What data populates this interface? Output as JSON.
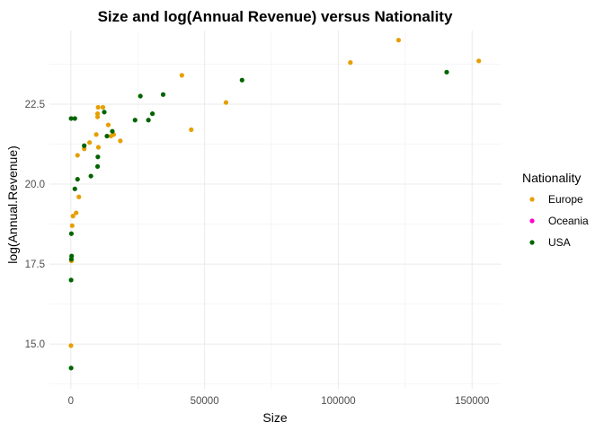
{
  "chart_data": {
    "type": "scatter",
    "title": "Size and log(Annual Revenue) versus Nationality",
    "xlabel": "Size",
    "ylabel": "log(Annual.Revenue)",
    "xlim": [
      -8000,
      161000
    ],
    "ylim": [
      13.6,
      24.8
    ],
    "x_ticks": [
      0,
      50000,
      100000,
      150000
    ],
    "x_tick_labels": [
      "0",
      "50000",
      "100000",
      "150000"
    ],
    "y_ticks": [
      15.0,
      17.5,
      20.0,
      22.5
    ],
    "y_tick_labels": [
      "15.0",
      "17.5",
      "20.0",
      "22.5"
    ],
    "grid": true,
    "legend": {
      "title": "Nationality",
      "position": "right",
      "entries": [
        {
          "name": "Europe",
          "color": "#E69F00"
        },
        {
          "name": "Oceania",
          "color": "#FF00CC"
        },
        {
          "name": "USA",
          "color": "#006400"
        }
      ]
    },
    "series": [
      {
        "name": "Europe",
        "color": "#E69F00",
        "points": [
          [
            50,
            14.95
          ],
          [
            200,
            17.6
          ],
          [
            500,
            18.7
          ],
          [
            800,
            19.0
          ],
          [
            2000,
            19.1
          ],
          [
            2500,
            20.9
          ],
          [
            3000,
            19.6
          ],
          [
            5000,
            21.1
          ],
          [
            7000,
            21.3
          ],
          [
            9500,
            21.55
          ],
          [
            10000,
            22.1
          ],
          [
            10200,
            22.4
          ],
          [
            10000,
            22.2
          ],
          [
            10300,
            21.15
          ],
          [
            12000,
            22.4
          ],
          [
            14000,
            21.85
          ],
          [
            15000,
            21.5
          ],
          [
            16000,
            21.55
          ],
          [
            18500,
            21.35
          ],
          [
            41500,
            23.4
          ],
          [
            45000,
            21.7
          ],
          [
            58000,
            22.55
          ],
          [
            104500,
            23.8
          ],
          [
            122500,
            24.5
          ],
          [
            152500,
            23.85
          ]
        ]
      },
      {
        "name": "Oceania",
        "color": "#FF00CC",
        "points": []
      },
      {
        "name": "USA",
        "color": "#006400",
        "points": [
          [
            100,
            14.25
          ],
          [
            100,
            17.0
          ],
          [
            200,
            17.65
          ],
          [
            300,
            17.75
          ],
          [
            200,
            18.45
          ],
          [
            100,
            22.05
          ],
          [
            1500,
            22.05
          ],
          [
            1500,
            19.85
          ],
          [
            2500,
            20.15
          ],
          [
            5000,
            21.2
          ],
          [
            7500,
            20.25
          ],
          [
            10000,
            20.55
          ],
          [
            10100,
            20.85
          ],
          [
            12500,
            22.25
          ],
          [
            13500,
            21.5
          ],
          [
            15500,
            21.65
          ],
          [
            24000,
            22.0
          ],
          [
            26000,
            22.75
          ],
          [
            29000,
            22.0
          ],
          [
            30500,
            22.2
          ],
          [
            34500,
            22.8
          ],
          [
            64000,
            23.25
          ],
          [
            140500,
            23.5
          ]
        ]
      }
    ]
  }
}
